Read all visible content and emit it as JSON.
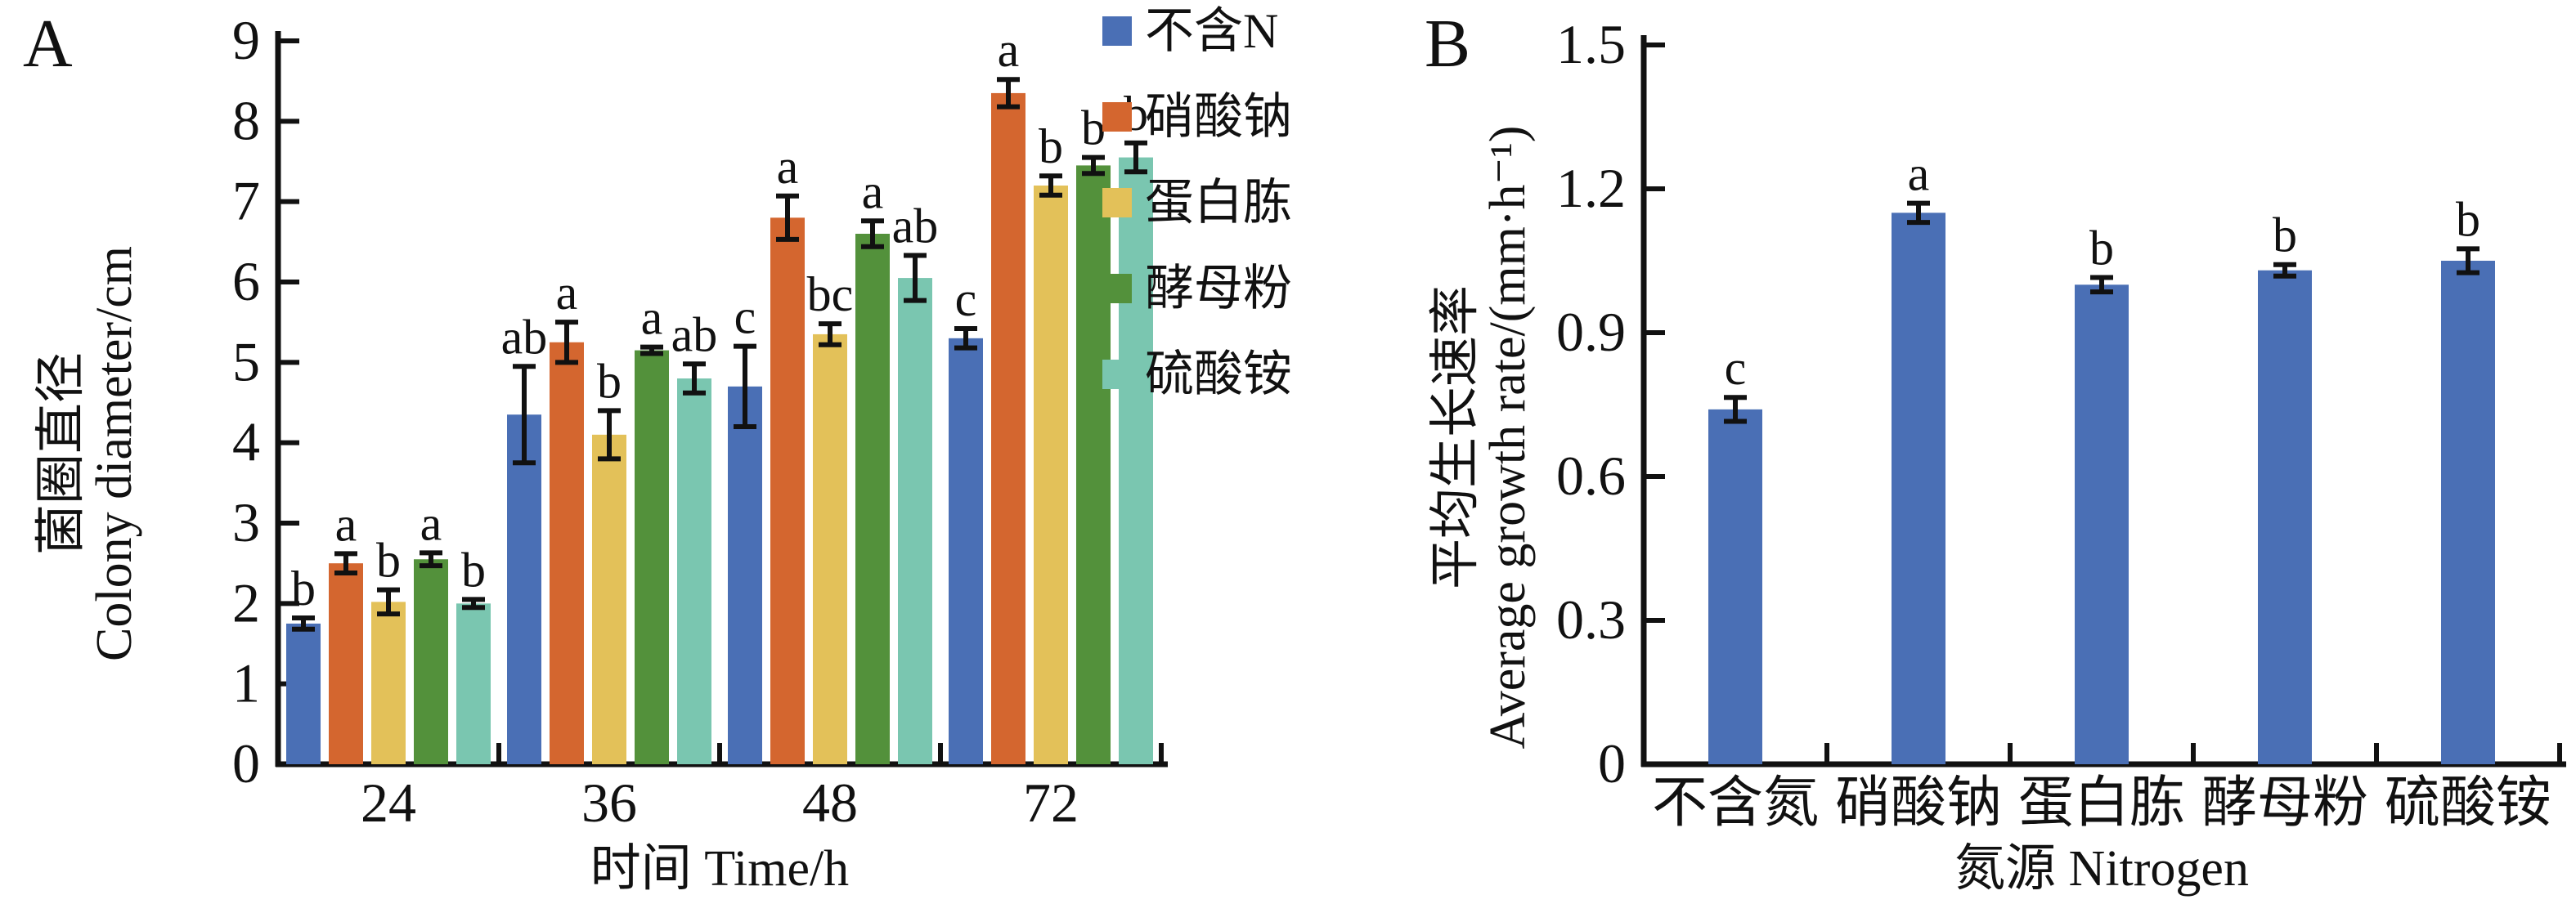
{
  "figure": {
    "background": "#ffffff",
    "axis_color": "#111111",
    "error_bar_color": "#111111"
  },
  "chart_data": [
    {
      "panel": "A",
      "type": "bar",
      "title": "",
      "xlabel": "时间 Time/h",
      "ylabel_cn": "菌圈直径",
      "ylabel_en": "Colony diameter/cm",
      "ylim": [
        0,
        9
      ],
      "yticks": [
        "0",
        "1",
        "2",
        "3",
        "4",
        "5",
        "6",
        "7",
        "8",
        "9"
      ],
      "grid": false,
      "legend_position": "right",
      "categories": [
        "24",
        "36",
        "48",
        "72"
      ],
      "series": [
        {
          "name": "不含N",
          "color": "#4a6fb5",
          "values": [
            1.75,
            4.35,
            4.7,
            5.3
          ],
          "errors": [
            0.07,
            0.6,
            0.5,
            0.12
          ],
          "letters": [
            "b",
            "ab",
            "c",
            "c"
          ]
        },
        {
          "name": "硝酸钠",
          "color": "#d4662f",
          "values": [
            2.5,
            5.25,
            6.8,
            8.35
          ],
          "errors": [
            0.12,
            0.25,
            0.27,
            0.17
          ],
          "letters": [
            "a",
            "a",
            "a",
            "a"
          ]
        },
        {
          "name": "蛋白胨",
          "color": "#e3c159",
          "values": [
            2.02,
            4.1,
            5.35,
            7.2
          ],
          "errors": [
            0.15,
            0.3,
            0.13,
            0.12
          ],
          "letters": [
            "b",
            "b",
            "bc",
            "b"
          ]
        },
        {
          "name": "酵母粉",
          "color": "#53913b",
          "values": [
            2.55,
            5.15,
            6.6,
            7.45
          ],
          "errors": [
            0.08,
            0.04,
            0.16,
            0.1
          ],
          "letters": [
            "a",
            "a",
            "a",
            "b"
          ]
        },
        {
          "name": "硫酸铵",
          "color": "#7ac6b0",
          "values": [
            2.0,
            4.8,
            6.05,
            7.55
          ],
          "errors": [
            0.05,
            0.18,
            0.28,
            0.18
          ],
          "letters": [
            "b",
            "ab",
            "ab",
            "b"
          ]
        }
      ]
    },
    {
      "panel": "B",
      "type": "bar",
      "title": "",
      "xlabel": "氮源 Nitrogen",
      "ylabel_cn": "平均生长速率",
      "ylabel_en": "Average growth rate/(mm·h⁻¹)",
      "ylim": [
        0,
        1.5
      ],
      "yticks": [
        "0",
        "0.3",
        "0.6",
        "0.9",
        "1.2",
        "1.5"
      ],
      "grid": false,
      "legend_position": "none",
      "categories": [
        "不含氮",
        "硝酸钠",
        "蛋白胨",
        "酵母粉",
        "硫酸铵"
      ],
      "series": [
        {
          "name": "平均生长速率",
          "color": "#4a6fb5",
          "values": [
            0.74,
            1.15,
            1.0,
            1.03,
            1.05
          ],
          "errors": [
            0.025,
            0.02,
            0.015,
            0.012,
            0.025
          ],
          "letters": [
            "c",
            "a",
            "b",
            "b",
            "b"
          ]
        }
      ]
    }
  ]
}
